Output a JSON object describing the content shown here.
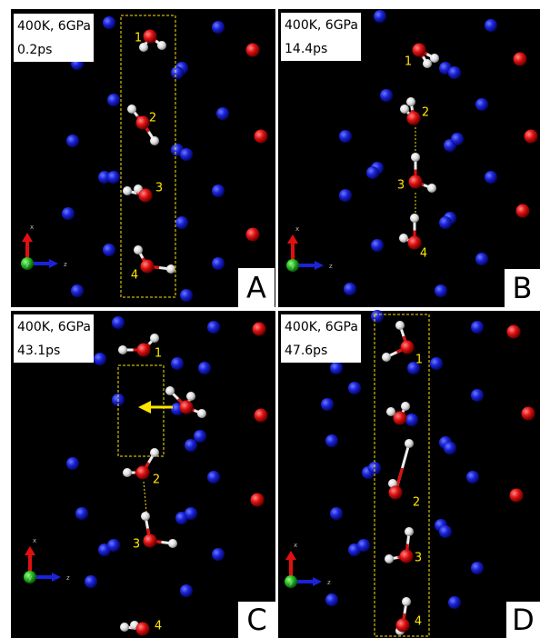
{
  "panels": [
    {
      "condition": "400K, 6GPa",
      "time": "0.2ps",
      "letter": "A",
      "molecule_labels": [
        "1",
        "2",
        "3",
        "4"
      ],
      "axes": {
        "x": "x",
        "y": "y",
        "z": "z"
      }
    },
    {
      "condition": "400K, 6GPa",
      "time": "14.4ps",
      "letter": "B",
      "molecule_labels": [
        "1",
        "2",
        "3",
        "4"
      ],
      "axes": {
        "x": "x",
        "y": "y",
        "z": "z"
      }
    },
    {
      "condition": "400K, 6GPa",
      "time": "43.1ps",
      "letter": "C",
      "molecule_labels": [
        "1",
        "2",
        "3",
        "4"
      ],
      "axes": {
        "x": "x",
        "y": "y",
        "z": "z"
      }
    },
    {
      "condition": "400K, 6GPa",
      "time": "47.6ps",
      "letter": "D",
      "molecule_labels": [
        "1",
        "2",
        "3",
        "4"
      ],
      "axes": {
        "x": "x",
        "y": "y",
        "z": "z"
      }
    }
  ]
}
